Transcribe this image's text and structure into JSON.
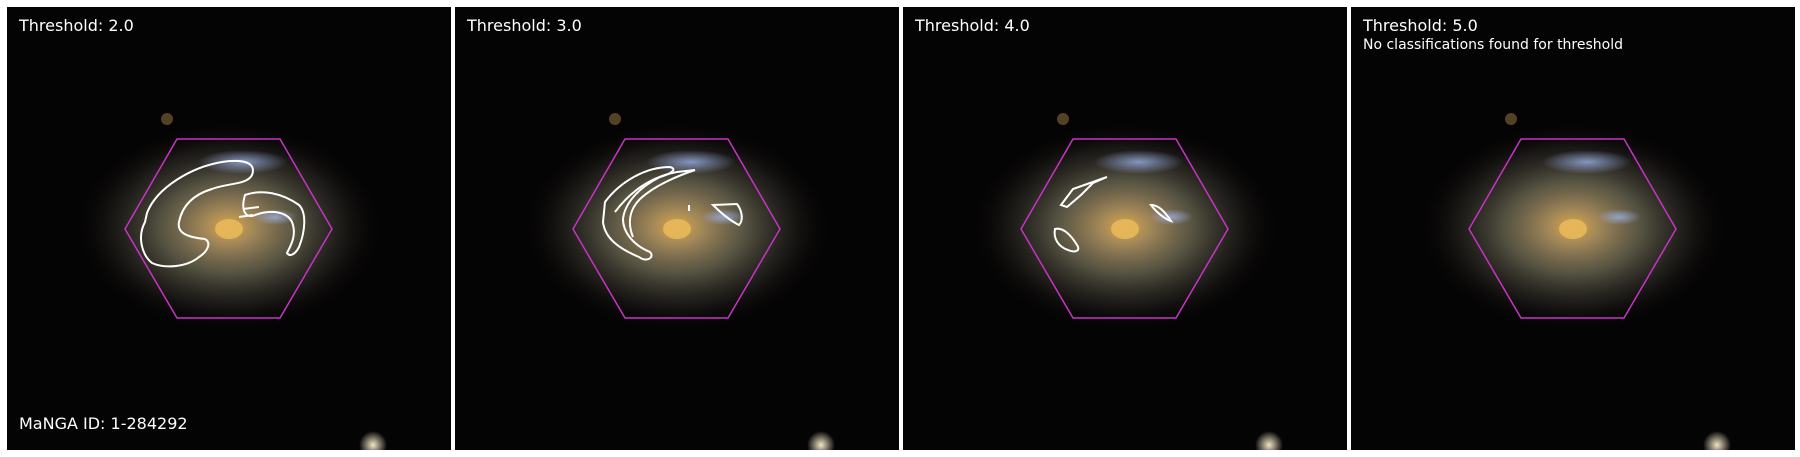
{
  "panels": [
    {
      "threshold_label": "Threshold: 2.0",
      "note": "",
      "has_outlines": true
    },
    {
      "threshold_label": "Threshold: 3.0",
      "note": "",
      "has_outlines": true
    },
    {
      "threshold_label": "Threshold: 4.0",
      "note": "",
      "has_outlines": true
    },
    {
      "threshold_label": "Threshold: 5.0",
      "note": "No classifications found for threshold",
      "has_outlines": false
    }
  ],
  "manga_id_label": "MaNGA ID: 1-284292",
  "colors": {
    "hexagon": "#c832c8",
    "outline": "#ffffff",
    "sky": "#050404",
    "galaxy_core": "#d4a24a",
    "galaxy_halo": "#7c7a5e",
    "arm_blue": "#8a9ed8"
  }
}
